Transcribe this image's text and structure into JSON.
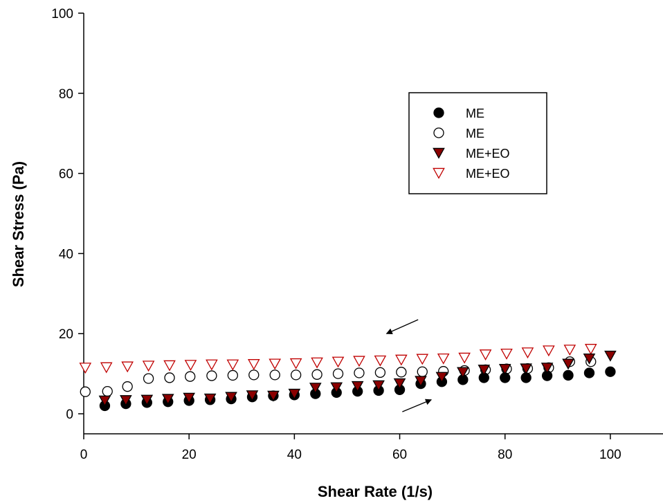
{
  "chart_data": {
    "type": "scatter",
    "xlabel": "Shear Rate (1/s)",
    "ylabel": "Shear Stress (Pa)",
    "xlim": [
      0,
      110
    ],
    "ylim": [
      -5,
      100
    ],
    "xticks": [
      0,
      20,
      40,
      60,
      80,
      100
    ],
    "yticks": [
      0,
      20,
      40,
      60,
      80,
      100
    ],
    "legend_position": "top-right",
    "series": [
      {
        "name": "ME",
        "marker": "filled-circle",
        "color": "#000000",
        "x": [
          4,
          8,
          12,
          16,
          20,
          24,
          28,
          32,
          36,
          40,
          44,
          48,
          52,
          56,
          60,
          64,
          68,
          72,
          76,
          80,
          84,
          88,
          92,
          96,
          100
        ],
        "y": [
          2,
          2.5,
          2.8,
          3,
          3.3,
          3.5,
          3.7,
          4.2,
          4.5,
          4.7,
          5,
          5.3,
          5.6,
          5.8,
          6,
          7.5,
          8,
          8.5,
          9,
          9,
          9,
          9.5,
          9.6,
          10.2,
          10.5
        ]
      },
      {
        "name": "ME",
        "marker": "open-circle",
        "color": "#000000",
        "x": [
          0.3,
          4.5,
          8.3,
          12.3,
          16.3,
          20.2,
          24.3,
          28.3,
          32.3,
          36.3,
          40.3,
          44.3,
          48.3,
          52.3,
          56.3,
          60.3,
          64.3,
          68.3,
          72.3,
          76.3,
          80.3,
          84.3,
          88.3,
          92.3,
          96.3
        ],
        "y": [
          5.5,
          5.6,
          6.8,
          8.8,
          9,
          9.3,
          9.5,
          9.6,
          9.7,
          9.7,
          9.7,
          9.8,
          10,
          10.2,
          10.3,
          10.4,
          10.5,
          10.6,
          10.8,
          11,
          11.2,
          11.3,
          11.5,
          13,
          13
        ]
      },
      {
        "name": "ME+EO",
        "marker": "filled-triangle-down",
        "color": "#8b0000",
        "x": [
          4,
          8,
          12,
          16,
          20,
          24,
          28,
          32,
          36,
          40,
          44,
          48,
          52,
          56,
          60,
          64,
          68,
          72,
          76,
          80,
          84,
          88,
          92,
          96,
          100
        ],
        "y": [
          3.3,
          3.4,
          3.5,
          3.7,
          4,
          3.8,
          4.2,
          4.6,
          4.5,
          5,
          6.5,
          6.6,
          6.9,
          7.1,
          7.6,
          8.2,
          9.2,
          10.4,
          11,
          11.2,
          11.3,
          11.5,
          12.5,
          13.8,
          14.5
        ]
      },
      {
        "name": "ME+EO",
        "marker": "open-triangle-down",
        "color": "#c00000",
        "x": [
          0.3,
          4.3,
          8.3,
          12.3,
          16.3,
          20.3,
          24.3,
          28.3,
          32.3,
          36.3,
          40.3,
          44.3,
          48.3,
          52.3,
          56.3,
          60.3,
          64.3,
          68.3,
          72.3,
          76.3,
          80.3,
          84.3,
          88.3,
          92.3,
          96.3
        ],
        "y": [
          11.5,
          11.6,
          11.8,
          12,
          12.1,
          12.2,
          12.3,
          12.3,
          12.4,
          12.5,
          12.6,
          12.8,
          13,
          13.2,
          13.3,
          13.5,
          13.7,
          13.8,
          14,
          14.8,
          15,
          15.3,
          15.8,
          16,
          16.2
        ]
      }
    ],
    "annotations": [
      {
        "type": "arrow",
        "direction": "down-left",
        "from": [
          63.5,
          23.5
        ],
        "to": [
          57.5,
          20
        ]
      },
      {
        "type": "arrow",
        "direction": "up-right",
        "from": [
          60.5,
          0.5
        ],
        "to": [
          66,
          3.5
        ]
      }
    ]
  }
}
